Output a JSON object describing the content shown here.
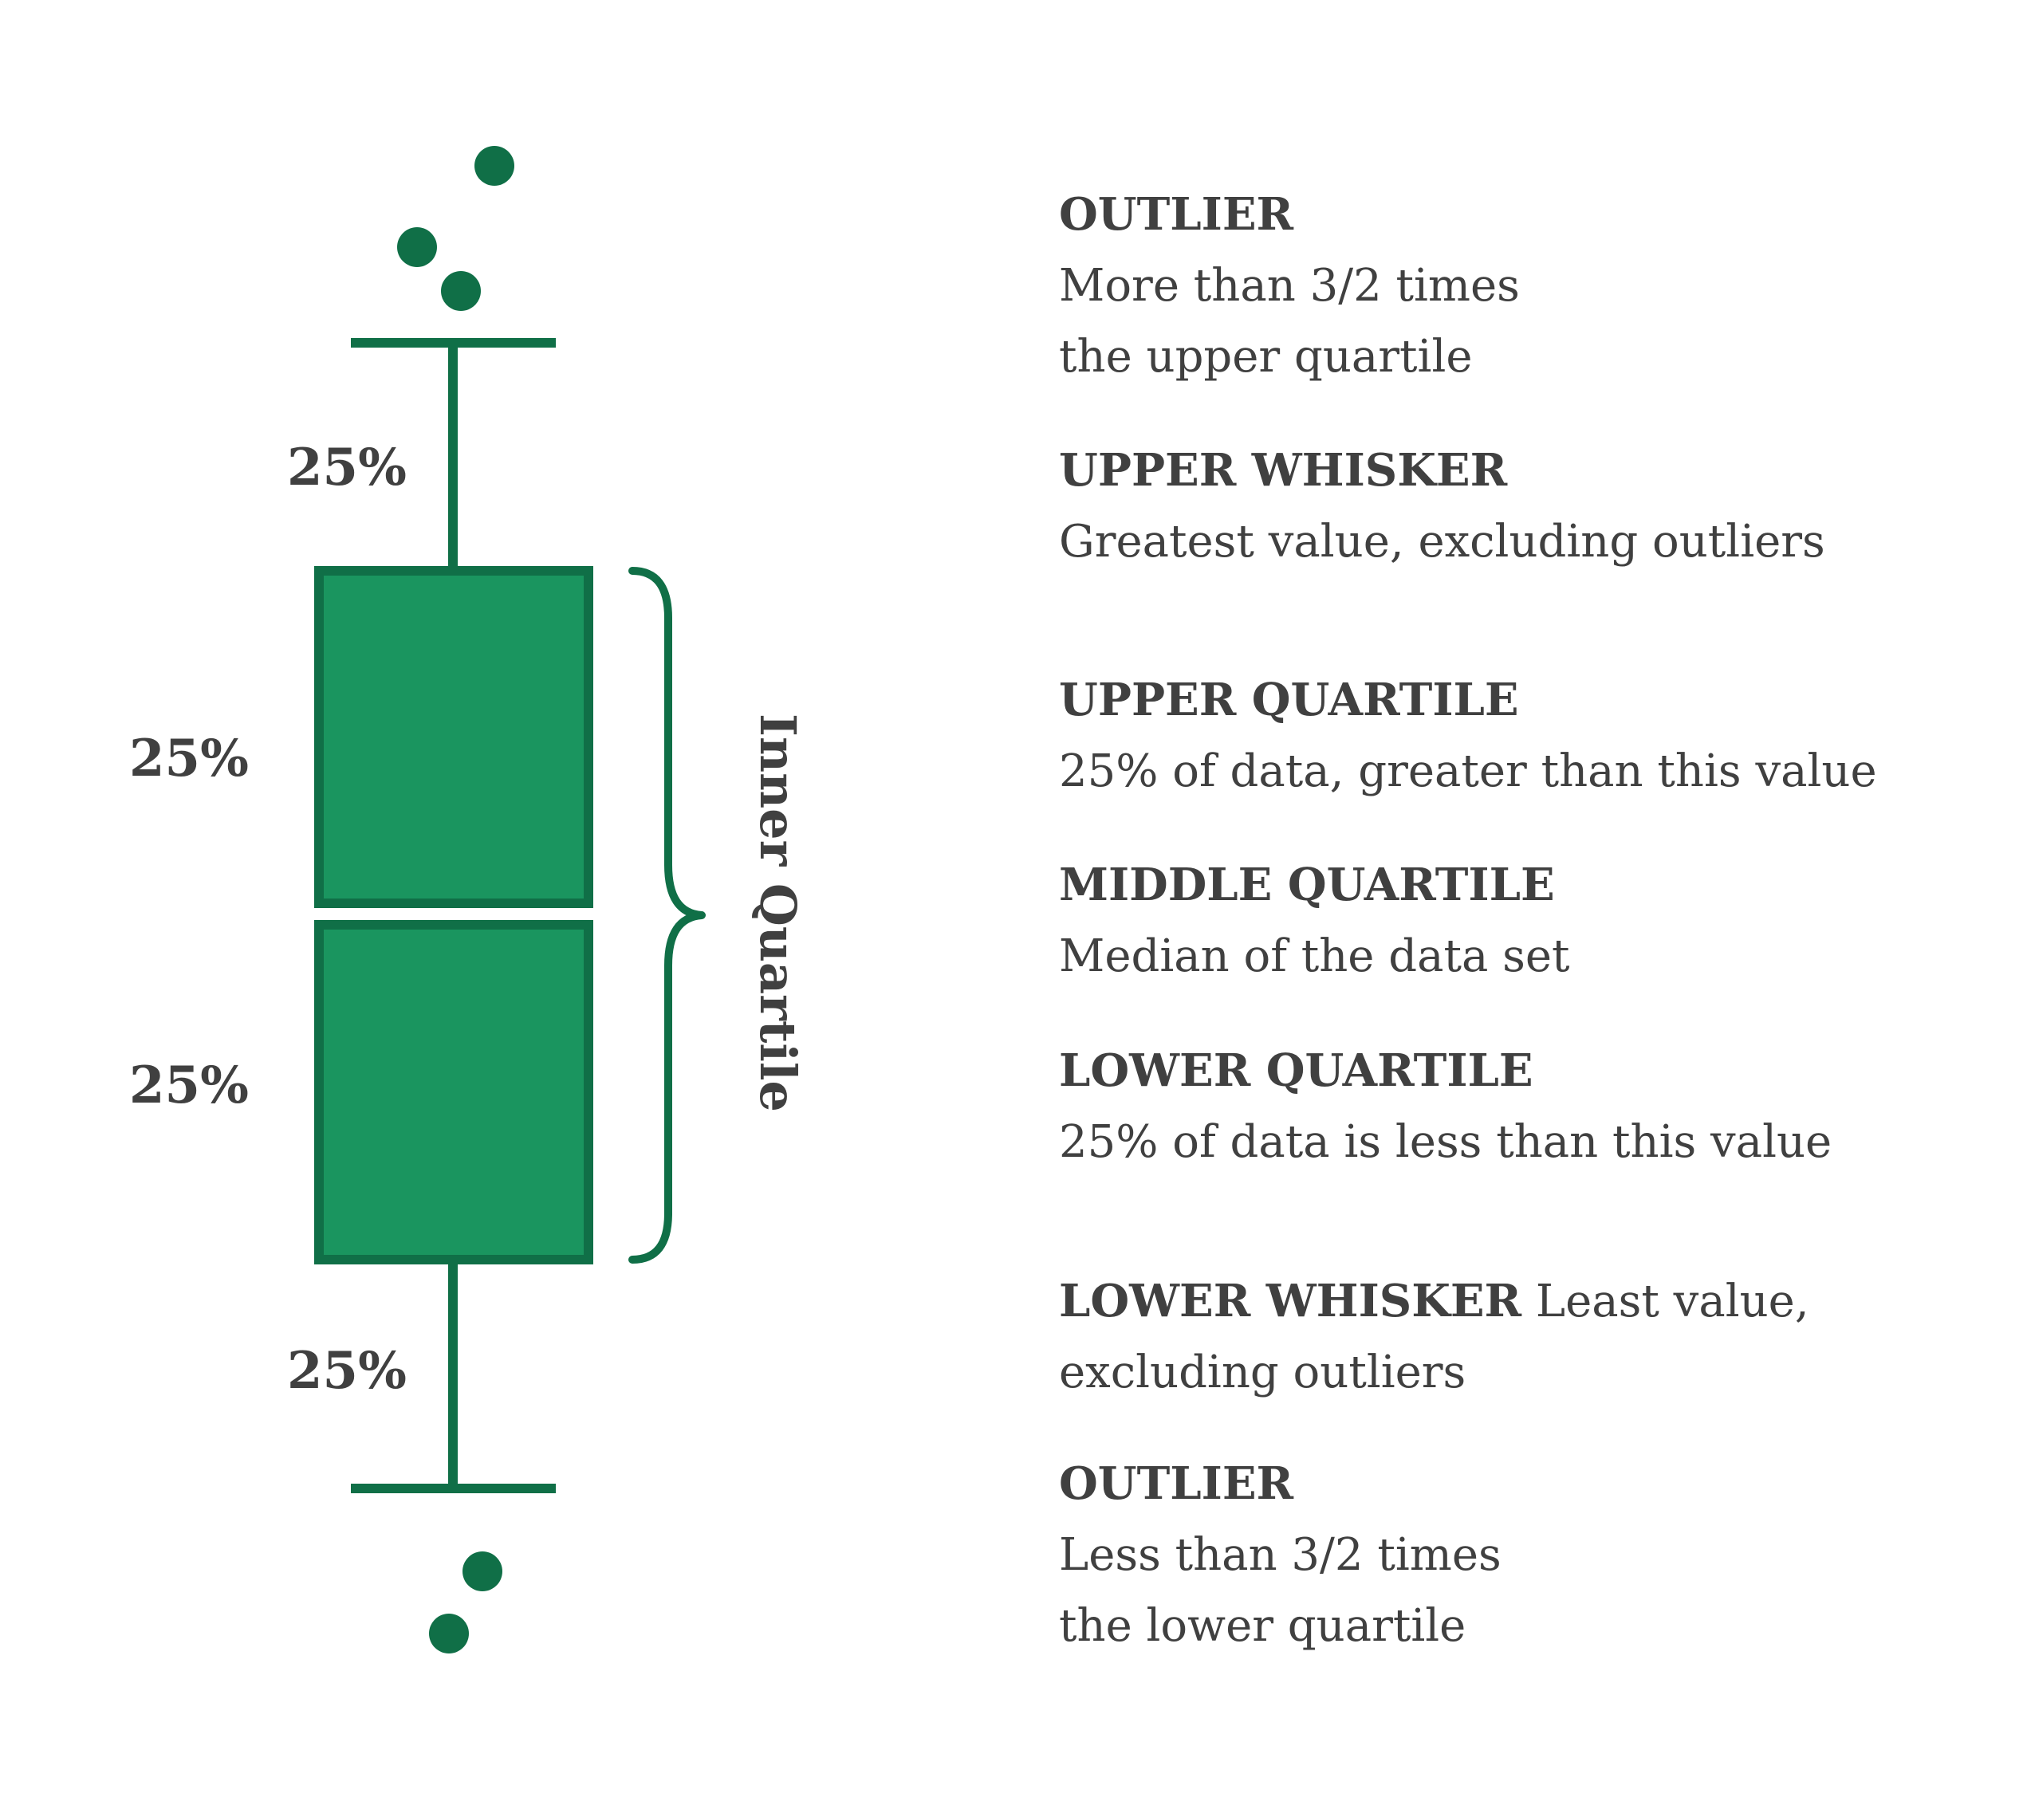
{
  "colors": {
    "box_fill": "#1a955f",
    "stroke": "#106f47",
    "text": "#404040",
    "background": "#ffffff"
  },
  "percent_labels": {
    "upper_whisker": "25%",
    "upper_box": "25%",
    "lower_box": "25%",
    "lower_whisker": "25%"
  },
  "bracket_label": "Inner Quartile",
  "legend": {
    "outlier_top": {
      "title": "OUTLIER",
      "desc_line1": "More than 3/2 times",
      "desc_line2": "the upper quartile"
    },
    "upper_whisker": {
      "title": "UPPER WHISKER",
      "desc": "Greatest value, excluding outliers"
    },
    "upper_quartile": {
      "title": "UPPER QUARTILE",
      "desc": "25% of data, greater than this value"
    },
    "middle_quartile": {
      "title": "MIDDLE QUARTILE",
      "desc": "Median of the data set"
    },
    "lower_quartile": {
      "title": "LOWER QUARTILE",
      "desc": "25% of data is less than this value"
    },
    "lower_whisker": {
      "title": "LOWER WHISKER",
      "desc_inline": "Least value,",
      "desc_line2": "excluding outliers"
    },
    "outlier_bottom": {
      "title": "OUTLIER",
      "desc_line1": "Less than 3/2 times",
      "desc_line2": "the lower quartile"
    }
  }
}
